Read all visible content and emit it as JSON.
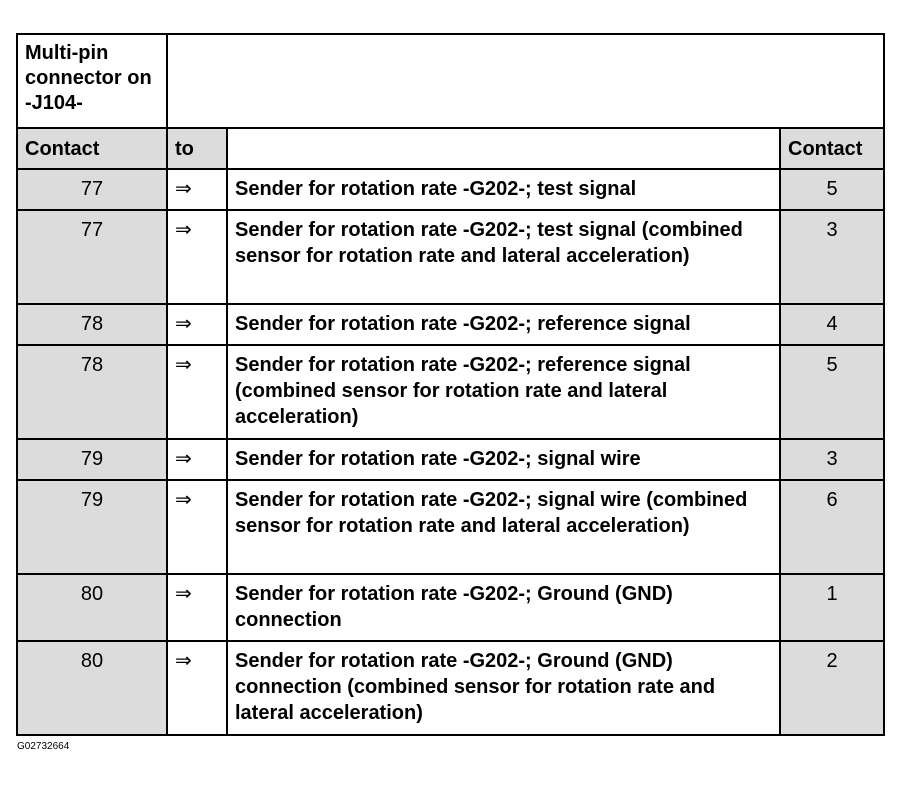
{
  "header": {
    "connector": "Multi-pin connector on -J104-",
    "col_contact_left": "Contact",
    "col_to": "to",
    "col_contact_right": "Contact"
  },
  "rows": [
    {
      "contact": "77",
      "arrow": "⇒",
      "description": "Sender for rotation rate -G202-; test signal",
      "target": "5"
    },
    {
      "contact": "77",
      "arrow": "⇒",
      "description": "Sender for rotation rate -G202-; test signal (combined sensor for rotation rate and lateral acceleration)",
      "target": "3"
    },
    {
      "contact": "78",
      "arrow": "⇒",
      "description": "Sender for rotation rate -G202-; reference signal",
      "target": "4"
    },
    {
      "contact": "78",
      "arrow": "⇒",
      "description": "Sender for rotation rate -G202-; reference signal (combined sensor for rotation rate and lateral acceleration)",
      "target": "5"
    },
    {
      "contact": "79",
      "arrow": "⇒",
      "description": "Sender for rotation rate -G202-; signal wire",
      "target": "3"
    },
    {
      "contact": "79",
      "arrow": "⇒",
      "description": "Sender for rotation rate -G202-; signal wire (combined sensor for rotation rate and lateral acceleration)",
      "target": "6"
    },
    {
      "contact": "80",
      "arrow": "⇒",
      "description": "Sender for rotation rate -G202-; Ground (GND) connection",
      "target": "1"
    },
    {
      "contact": "80",
      "arrow": "⇒",
      "description": "Sender for rotation rate -G202-; Ground (GND) connection (combined sensor for rotation rate and lateral acceleration)",
      "target": "2"
    }
  ],
  "figure_id": "G02732664"
}
